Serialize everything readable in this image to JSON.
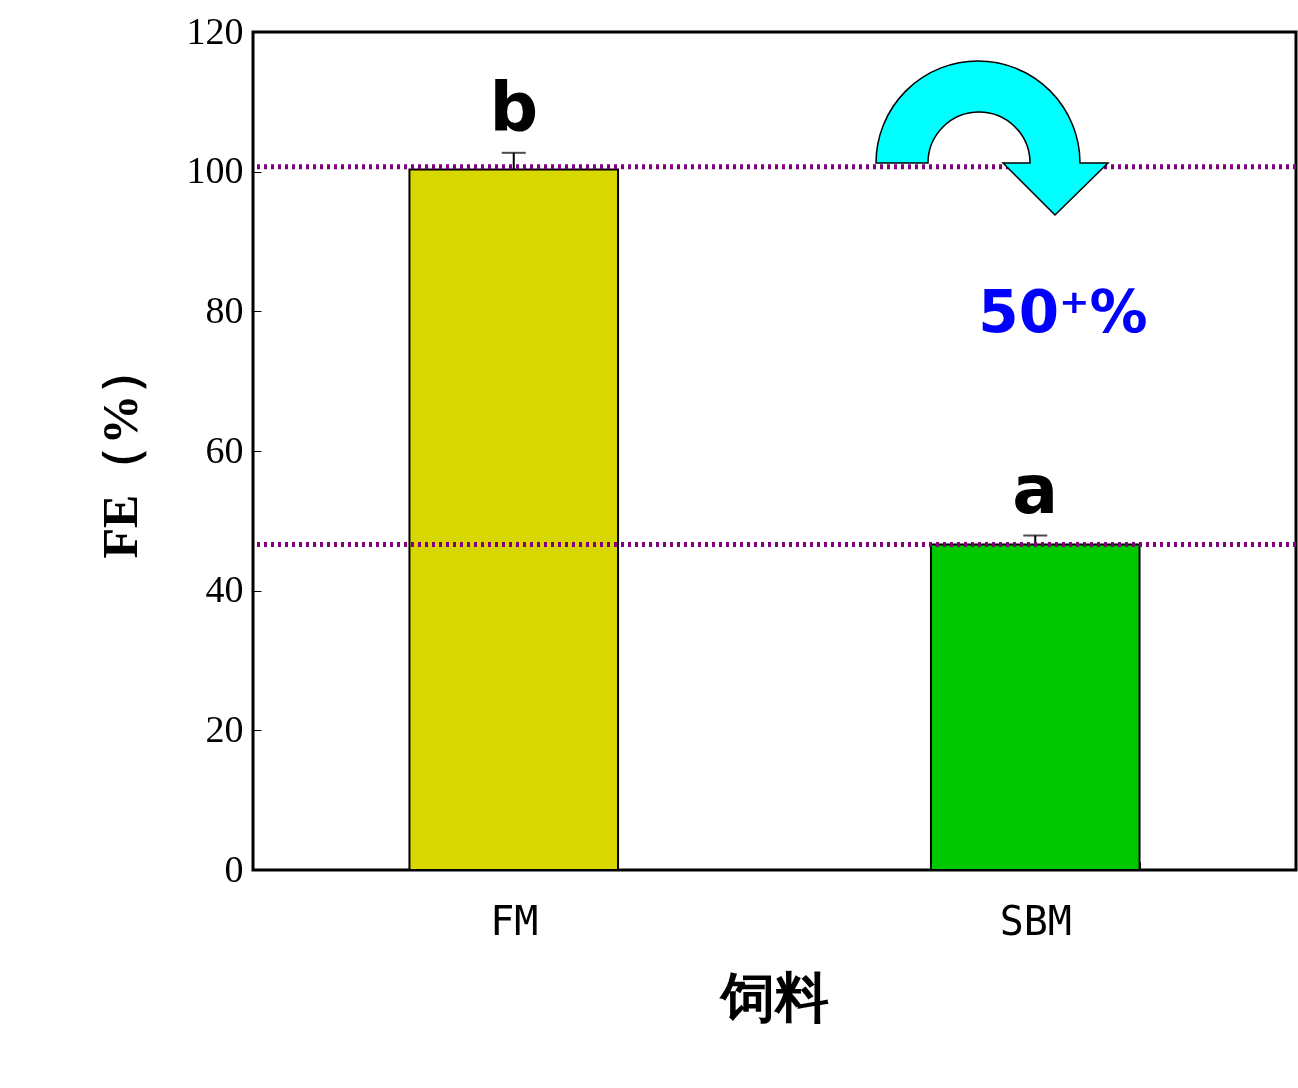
{
  "chart_data": {
    "type": "bar",
    "xlabel": "饲料",
    "ylabel": "FE（%）",
    "categories": [
      "FM",
      "SBM"
    ],
    "values": [
      100.3,
      46.6
    ],
    "colors": [
      "#d8d800",
      "#00c800"
    ],
    "errors": [
      2.4,
      1.3
    ],
    "ylim": [
      0,
      120
    ],
    "yticks": [
      0,
      20,
      40,
      60,
      80,
      100,
      120
    ],
    "grid": false,
    "ref_lines": [
      {
        "axis": "y",
        "value": 100.7,
        "color": "#800080",
        "line_style": "dotted"
      },
      {
        "axis": "y",
        "value": 46.6,
        "color": "#800080",
        "line_style": "dotted"
      }
    ],
    "annotations": [
      "b",
      "a",
      "50⁺%"
    ]
  }
}
